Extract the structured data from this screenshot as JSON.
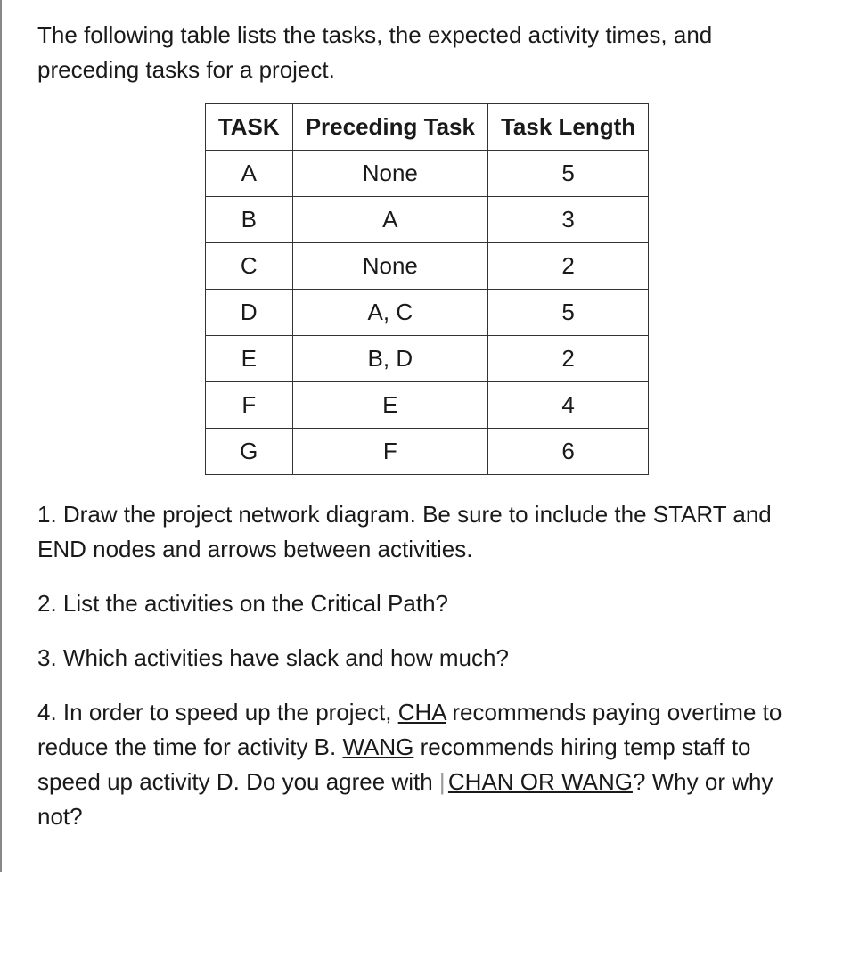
{
  "intro": "The following table lists the tasks, the expected activity times, and preceding tasks for a project.",
  "table": {
    "headers": [
      "TASK",
      "Preceding Task",
      "Task Length"
    ],
    "rows": [
      [
        "A",
        "None",
        "5"
      ],
      [
        "B",
        "A",
        "3"
      ],
      [
        "C",
        "None",
        "2"
      ],
      [
        "D",
        "A, C",
        "5"
      ],
      [
        "E",
        "B, D",
        "2"
      ],
      [
        "F",
        "E",
        "4"
      ],
      [
        "G",
        "F",
        "6"
      ]
    ]
  },
  "q1": "1. Draw the project network diagram.  Be sure to include the START and END nodes and arrows between activities.",
  "q2": "2. List the activities on the Critical Path?",
  "q3": "3. Which activities have slack and how much?",
  "q4": {
    "part1": "4.  In order to speed up the project,  ",
    "cha": "CHA",
    "part2": "  recommends paying overtime to reduce the time for activity B.  ",
    "wang": "WANG",
    "part3": " recommends hiring temp staff to speed up activity D.  Do you agree with ",
    "chanorwang": "CHAN OR WANG",
    "part4": "?  Why or why not?"
  }
}
